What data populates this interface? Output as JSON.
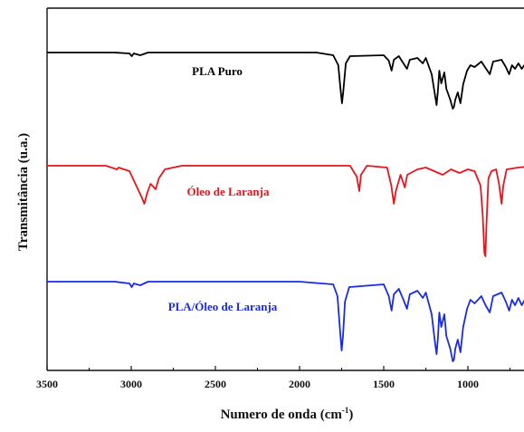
{
  "chart_data": {
    "type": "line",
    "xlabel": "Numero de onda (cm",
    "xlabel_sup": "-1",
    "xlabel_close": ")",
    "ylabel": "Transmitância (u.a.)",
    "xlim": [
      3500,
      650
    ],
    "x_reversed": true,
    "xticks": [
      3500,
      3000,
      2500,
      2000,
      1500,
      1000
    ],
    "xtick_labels": [
      "3500",
      "3000",
      "2500",
      "2000",
      "1500",
      "1000"
    ],
    "y_ticks_shown": false,
    "grid": false,
    "series": [
      {
        "name": "PLA Puro",
        "color": "#000000",
        "baseline": 58,
        "label_pos": [
          240,
          83
        ],
        "points": [
          [
            3500,
            0
          ],
          [
            3100,
            0
          ],
          [
            3010,
            1
          ],
          [
            2997,
            4
          ],
          [
            2985,
            1
          ],
          [
            2946,
            3
          ],
          [
            2900,
            0
          ],
          [
            1900,
            0
          ],
          [
            1800,
            3
          ],
          [
            1770,
            14
          ],
          [
            1757,
            40
          ],
          [
            1748,
            56
          ],
          [
            1740,
            42
          ],
          [
            1725,
            12
          ],
          [
            1700,
            4
          ],
          [
            1500,
            3
          ],
          [
            1470,
            9
          ],
          [
            1453,
            20
          ],
          [
            1440,
            8
          ],
          [
            1410,
            4
          ],
          [
            1383,
            12
          ],
          [
            1362,
            18
          ],
          [
            1345,
            8
          ],
          [
            1300,
            6
          ],
          [
            1268,
            12
          ],
          [
            1250,
            6
          ],
          [
            1215,
            24
          ],
          [
            1196,
            46
          ],
          [
            1186,
            58
          ],
          [
            1178,
            42
          ],
          [
            1170,
            20
          ],
          [
            1158,
            34
          ],
          [
            1140,
            22
          ],
          [
            1128,
            40
          ],
          [
            1105,
            52
          ],
          [
            1090,
            62
          ],
          [
            1083,
            60
          ],
          [
            1075,
            52
          ],
          [
            1060,
            44
          ],
          [
            1044,
            56
          ],
          [
            1028,
            35
          ],
          [
            1005,
            20
          ],
          [
            985,
            14
          ],
          [
            960,
            16
          ],
          [
            920,
            10
          ],
          [
            895,
            17
          ],
          [
            870,
            24
          ],
          [
            850,
            10
          ],
          [
            800,
            8
          ],
          [
            775,
            16
          ],
          [
            755,
            24
          ],
          [
            738,
            14
          ],
          [
            720,
            18
          ],
          [
            700,
            12
          ],
          [
            680,
            18
          ],
          [
            650,
            10
          ]
        ]
      },
      {
        "name": "Óleo de Laranja",
        "color": "#e8141c",
        "baseline": 183,
        "label_pos": [
          252,
          216
        ],
        "points": [
          [
            3500,
            0
          ],
          [
            3150,
            0
          ],
          [
            3085,
            4
          ],
          [
            3075,
            2
          ],
          [
            3010,
            6
          ],
          [
            2965,
            24
          ],
          [
            2940,
            34
          ],
          [
            2922,
            42
          ],
          [
            2905,
            30
          ],
          [
            2885,
            20
          ],
          [
            2855,
            26
          ],
          [
            2836,
            14
          ],
          [
            2800,
            4
          ],
          [
            2700,
            0
          ],
          [
            1700,
            0
          ],
          [
            1660,
            12
          ],
          [
            1645,
            28
          ],
          [
            1635,
            10
          ],
          [
            1600,
            0
          ],
          [
            1480,
            2
          ],
          [
            1455,
            22
          ],
          [
            1440,
            42
          ],
          [
            1428,
            28
          ],
          [
            1400,
            10
          ],
          [
            1375,
            24
          ],
          [
            1360,
            10
          ],
          [
            1300,
            4
          ],
          [
            1250,
            2
          ],
          [
            1200,
            6
          ],
          [
            1150,
            10
          ],
          [
            1100,
            4
          ],
          [
            1050,
            8
          ],
          [
            1000,
            4
          ],
          [
            960,
            6
          ],
          [
            925,
            22
          ],
          [
            912,
            55
          ],
          [
            902,
            96
          ],
          [
            896,
            100
          ],
          [
            888,
            58
          ],
          [
            878,
            14
          ],
          [
            860,
            6
          ],
          [
            832,
            4
          ],
          [
            815,
            20
          ],
          [
            800,
            42
          ],
          [
            790,
            22
          ],
          [
            770,
            4
          ],
          [
            700,
            2
          ],
          [
            650,
            1
          ]
        ]
      },
      {
        "name": "PLA/Óleo de Laranja",
        "color": "#1a2be6",
        "baseline": 311,
        "label_pos": [
          246,
          343
        ],
        "points": [
          [
            3500,
            0
          ],
          [
            3100,
            0
          ],
          [
            3010,
            2
          ],
          [
            2997,
            6
          ],
          [
            2985,
            2
          ],
          [
            2946,
            4
          ],
          [
            2900,
            0
          ],
          [
            2000,
            0
          ],
          [
            1800,
            3
          ],
          [
            1775,
            16
          ],
          [
            1760,
            52
          ],
          [
            1750,
            76
          ],
          [
            1742,
            60
          ],
          [
            1730,
            22
          ],
          [
            1705,
            6
          ],
          [
            1500,
            3
          ],
          [
            1470,
            16
          ],
          [
            1453,
            32
          ],
          [
            1440,
            14
          ],
          [
            1410,
            8
          ],
          [
            1383,
            20
          ],
          [
            1362,
            30
          ],
          [
            1345,
            14
          ],
          [
            1300,
            10
          ],
          [
            1268,
            18
          ],
          [
            1250,
            12
          ],
          [
            1215,
            36
          ],
          [
            1196,
            66
          ],
          [
            1186,
            80
          ],
          [
            1178,
            62
          ],
          [
            1170,
            34
          ],
          [
            1158,
            50
          ],
          [
            1140,
            36
          ],
          [
            1128,
            60
          ],
          [
            1105,
            74
          ],
          [
            1090,
            88
          ],
          [
            1083,
            86
          ],
          [
            1075,
            74
          ],
          [
            1060,
            64
          ],
          [
            1044,
            78
          ],
          [
            1028,
            50
          ],
          [
            1005,
            30
          ],
          [
            985,
            20
          ],
          [
            960,
            24
          ],
          [
            920,
            16
          ],
          [
            895,
            26
          ],
          [
            870,
            34
          ],
          [
            850,
            16
          ],
          [
            800,
            12
          ],
          [
            775,
            22
          ],
          [
            755,
            32
          ],
          [
            738,
            20
          ],
          [
            720,
            26
          ],
          [
            700,
            18
          ],
          [
            680,
            26
          ],
          [
            650,
            16
          ]
        ]
      }
    ]
  }
}
